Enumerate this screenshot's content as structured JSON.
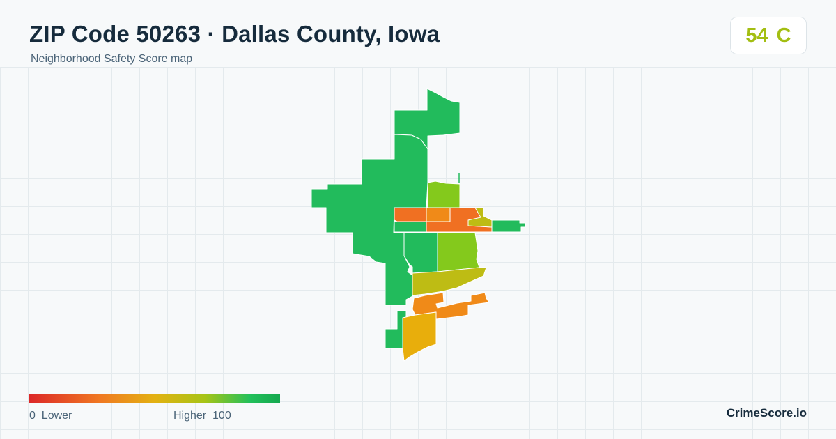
{
  "header": {
    "title": "ZIP Code 50263 · Dallas County, Iowa",
    "subtitle": "Neighborhood Safety Score map"
  },
  "score": {
    "value": "54",
    "grade": "C",
    "color": "#a3be12"
  },
  "legend": {
    "low_value": "0",
    "low_label": "Lower",
    "high_label": "Higher",
    "high_value": "100",
    "colors": [
      "#dc2828",
      "#f07822",
      "#e3b112",
      "#a7c416",
      "#22c05a"
    ]
  },
  "brand": "CrimeScore.io",
  "map": {
    "region_colors": {
      "very_high": "#22bb5c",
      "high": "#84c91c",
      "mid_high": "#bebc14",
      "mid": "#e8ae0c",
      "low": "#f08a18",
      "very_low": "#f07022"
    }
  }
}
